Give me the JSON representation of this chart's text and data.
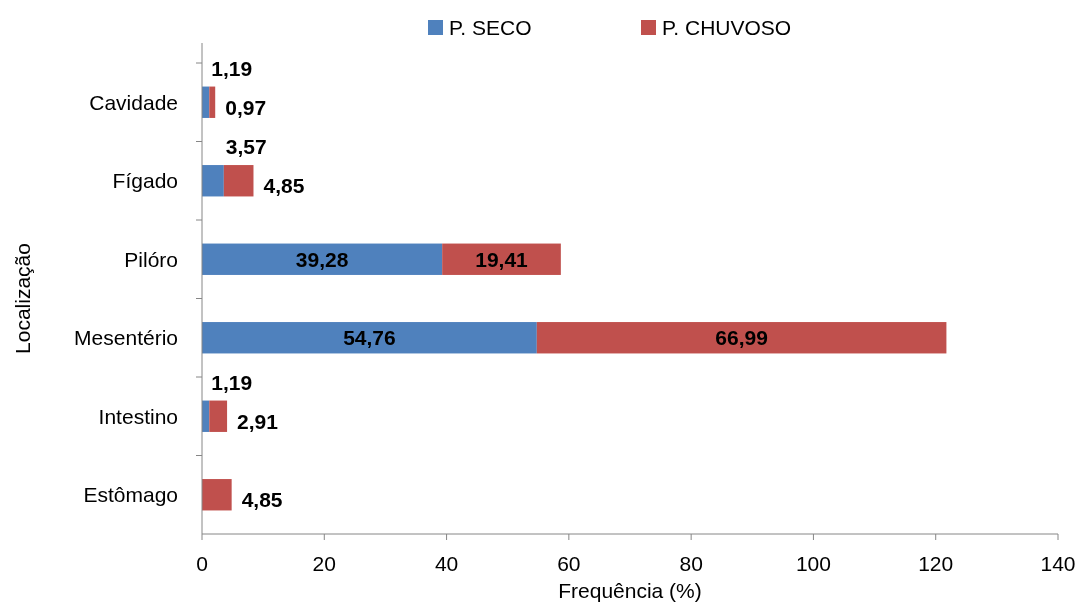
{
  "chart_data": {
    "type": "bar",
    "orientation": "horizontal",
    "stacked": true,
    "ylabel": "Localização",
    "xlabel": "Frequência (%)",
    "categories": [
      "Cavidade",
      "Fígado",
      "Pilóro",
      "Mesentério",
      "Intestino",
      "Estômago"
    ],
    "series": [
      {
        "name": "P. SECO",
        "color": "#4f81bd",
        "values": [
          1.19,
          3.57,
          39.28,
          54.76,
          1.19,
          null
        ],
        "value_labels": [
          "1,19",
          "3,57",
          "39,28",
          "54,76",
          "1,19",
          null
        ]
      },
      {
        "name": "P. CHUVOSO",
        "color": "#c0504d",
        "values": [
          0.97,
          4.85,
          19.41,
          66.99,
          2.91,
          4.85
        ],
        "value_labels": [
          "0,97",
          "4,85",
          "19,41",
          "66,99",
          "2,91",
          "4,85"
        ]
      }
    ],
    "xlim": [
      0,
      140
    ],
    "xticks": [
      0,
      20,
      40,
      60,
      80,
      100,
      120,
      140
    ],
    "grid": false,
    "legend": "top"
  }
}
